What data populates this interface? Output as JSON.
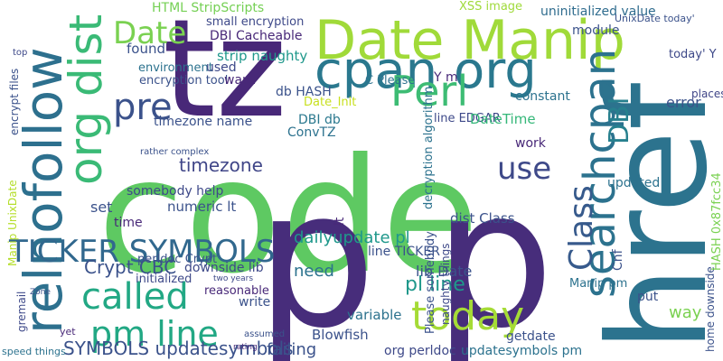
{
  "words": [
    "code",
    "p",
    "p",
    "tz",
    "href",
    "Date Manip",
    "cpan org",
    "relnofollow",
    "org dist",
    "Perl",
    "searchcpan",
    "pre",
    "Date",
    "TICKER SYMBOLS",
    "called",
    "pm line",
    "today",
    "use",
    "Class",
    "DBI",
    "timezone",
    "SYMBOLS updatesymbols",
    "Crypt CBC",
    "HTML StripScripts",
    "XSS image",
    "uninitialized value",
    "UnixDate today'",
    "small encryption",
    "DBI Cacheable",
    "found",
    "strip naughty",
    "environment",
    "encryption tool",
    "used",
    "want",
    "db HASH",
    "C Please",
    "Y m",
    "module",
    "today' Y",
    "Date_Init",
    "timezone name",
    "DBI db",
    "ConvTZ",
    "line EDGAR",
    "DateTime",
    "constant",
    "error",
    "places",
    "somebody help",
    "numeric lt",
    "set",
    "time",
    "dailyupdate pl",
    "line TICKER",
    "dist Class",
    "work",
    "updated",
    "need",
    "lib Date",
    "pl line",
    "downside lib",
    "reasonable",
    "perldoc Crypt",
    "initialized",
    "write",
    "Blowfish",
    "failing",
    "variable",
    "org perldoc",
    "getdate",
    "updatesymbols pm",
    "Manip pm",
    "way",
    "put",
    "home downside",
    "HASH 0x87fcc34",
    "Cnf",
    "Please somebody",
    "naughty things",
    "decryption algorithm",
    "lt",
    "Zone",
    "gremail",
    "yet",
    "speed things",
    "encrypt files",
    "Manip UnixDate",
    "top",
    "rather complex",
    "two years",
    "assumed",
    "rating"
  ]
}
